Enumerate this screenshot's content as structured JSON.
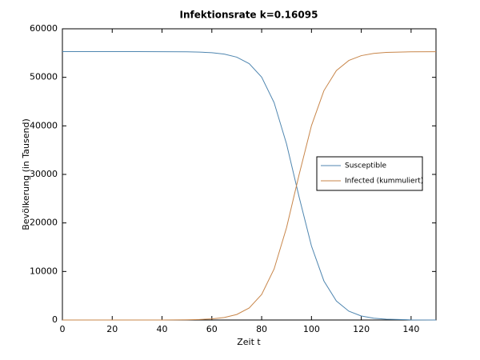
{
  "chart_data": {
    "type": "line",
    "title": "Infektionsrate k=0.16095",
    "x_label": "Zeit t",
    "y_label": "Bevölkerung (in Tausend)",
    "x": [
      0,
      10,
      20,
      30,
      40,
      50,
      55,
      60,
      65,
      70,
      75,
      80,
      85,
      90,
      95,
      100,
      105,
      110,
      115,
      120,
      125,
      130,
      140,
      150
    ],
    "series": [
      {
        "name": "Susceptible",
        "color": "#4f86b0",
        "values": [
          55300,
          55300,
          55300,
          55298,
          55291,
          55254,
          55196,
          55069,
          54786,
          54162,
          52820,
          50044,
          44787,
          36258,
          25425,
          15250,
          8040,
          3910,
          1820,
          830,
          370,
          170,
          30,
          10
        ]
      },
      {
        "name": "Infected (kummuliert)",
        "color": "#c8864a",
        "values": [
          0,
          0,
          0,
          2,
          9,
          46,
          104,
          231,
          514,
          1138,
          2480,
          5256,
          10513,
          19042,
          29875,
          40050,
          47260,
          51390,
          53480,
          54470,
          54930,
          55130,
          55270,
          55290
        ]
      }
    ],
    "xlim": [
      0,
      150
    ],
    "xticks": [
      0,
      20,
      40,
      60,
      80,
      100,
      120,
      140
    ],
    "ylim": [
      0,
      60000
    ],
    "yticks": [
      0,
      10000,
      20000,
      30000,
      40000,
      50000,
      60000
    ],
    "grid": false,
    "legend": "right"
  }
}
